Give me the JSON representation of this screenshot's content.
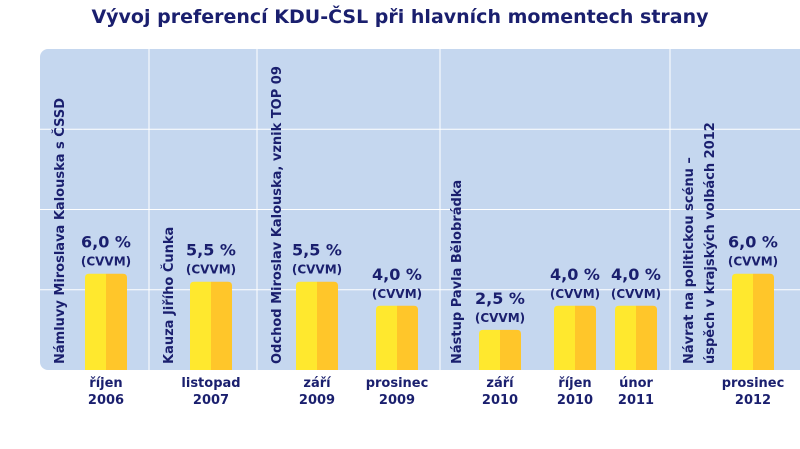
{
  "chart_data": {
    "type": "bar",
    "title": "Vývoj preferencí KDU-ČSL při hlavních momentech strany",
    "ylim": [
      0,
      20
    ],
    "grid": true,
    "categories": [
      [
        "říjen",
        "2006"
      ],
      [
        "listopad",
        "2007"
      ],
      [
        "září",
        "2009"
      ],
      [
        "prosinec",
        "2009"
      ],
      [
        "září",
        "2010"
      ],
      [
        "říjen",
        "2010"
      ],
      [
        "únor",
        "2011"
      ],
      [
        "prosinec",
        "2012"
      ]
    ],
    "values": [
      6.0,
      5.5,
      5.5,
      4.0,
      2.5,
      4.0,
      4.0,
      6.0
    ],
    "value_labels": [
      "6,0 %",
      "5,5 %",
      "5,5 %",
      "4,0 %",
      "2,5 %",
      "4,0 %",
      "4,0 %",
      "6,0 %"
    ],
    "source_label": "(CVVM)",
    "events": [
      [
        "Námluvy Miroslava Kalouska s ČSSD"
      ],
      [
        "Kauza Jiřího Čunka"
      ],
      [
        "Odchod Miroslav Kalouska, vznik TOP 09"
      ],
      [
        "Nástup Pavla Bělobrádka"
      ],
      [
        "Návrat na politickou scénu –",
        "úspěch v krajských volbách 2012"
      ]
    ],
    "colors": {
      "panel": "#c5d7ef",
      "bar_light": "#ffe82e",
      "bar_dark": "#ffc62a",
      "text": "#1a1f6e",
      "grid": "#ffffff"
    }
  }
}
